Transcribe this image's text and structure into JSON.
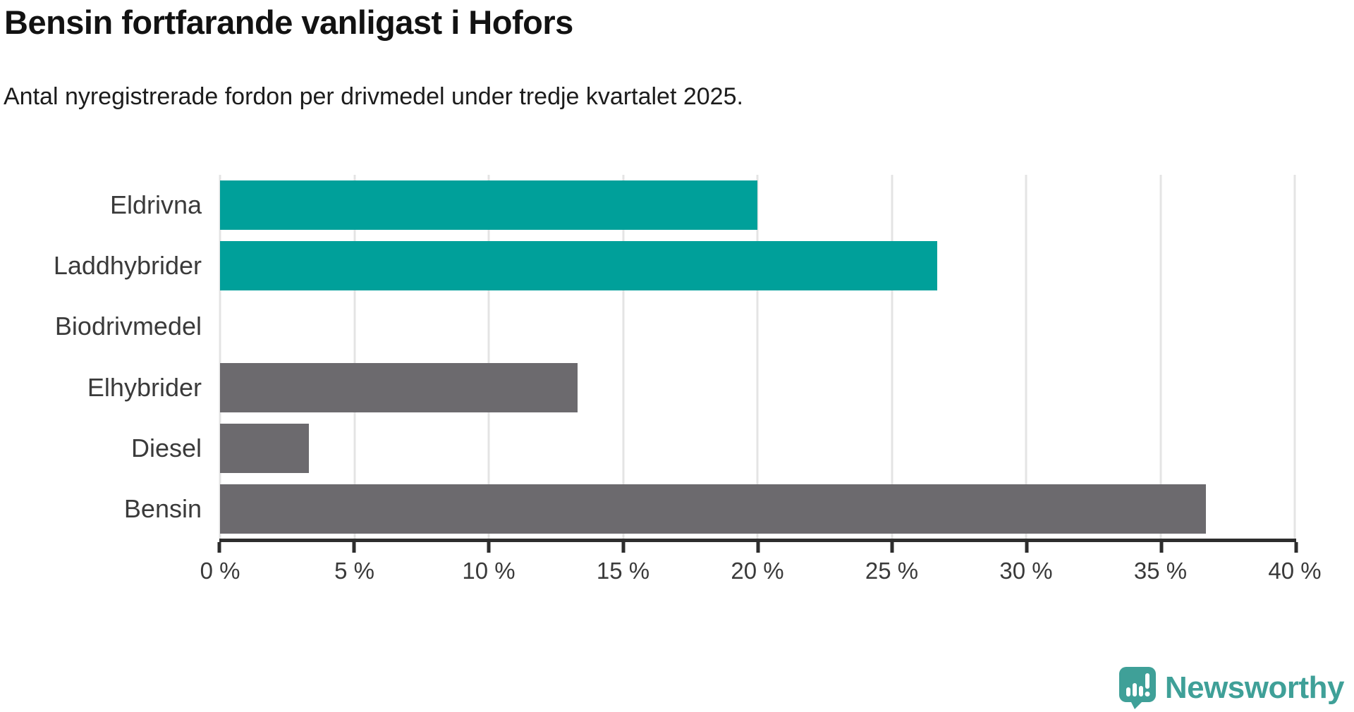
{
  "header": {
    "title": "Bensin fortfarande vanligast i Hofors",
    "subtitle": "Antal nyregistrerade fordon per drivmedel under tredje kvartalet 2025."
  },
  "chart_data": {
    "type": "bar",
    "orientation": "horizontal",
    "title": "Bensin fortfarande vanligast i Hofors",
    "subtitle": "Antal nyregistrerade fordon per drivmedel under tredje kvartalet 2025.",
    "categories": [
      "Eldrivna",
      "Laddhybrider",
      "Biodrivmedel",
      "Elhybrider",
      "Diesel",
      "Bensin"
    ],
    "values": [
      20,
      26.7,
      0,
      13.3,
      3.3,
      36.7
    ],
    "unit": "%",
    "bar_colors": [
      "#00a09a",
      "#00a09a",
      "#6c6a6e",
      "#6c6a6e",
      "#6c6a6e",
      "#6c6a6e"
    ],
    "x_ticks": [
      "0 %",
      "5 %",
      "10 %",
      "15 %",
      "20 %",
      "25 %",
      "30 %",
      "35 %",
      "40 %"
    ],
    "xlim": [
      0,
      40
    ],
    "grid": true,
    "legend": "none"
  },
  "footer": {
    "brand": "Newsworthy"
  },
  "colors": {
    "accent_teal": "#00a09a",
    "bar_gray": "#6c6a6e",
    "gridline": "#e4e4e4",
    "axis": "#2d2d2d",
    "logo_teal": "#3fa098",
    "text_dark": "#121212",
    "text_label": "#3a3a3a"
  }
}
